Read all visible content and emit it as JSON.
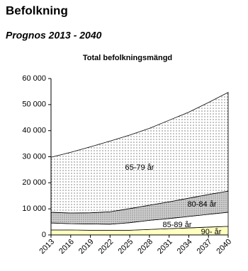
{
  "chart_data": {
    "type": "stacked-area",
    "title": "Befolkning",
    "subtitle": "Prognos 2013 - 2040",
    "chart_title": "Total befolkningsmängd",
    "x": [
      2013,
      2016,
      2019,
      2022,
      2025,
      2028,
      2031,
      2034,
      2037,
      2040
    ],
    "xlim": [
      2013,
      2040
    ],
    "xticks": [
      2013,
      2016,
      2019,
      2022,
      2025,
      2028,
      2031,
      2034,
      2037,
      2040
    ],
    "ylim": [
      0,
      60000
    ],
    "yticks": [
      {
        "value": 0,
        "label": "0"
      },
      {
        "value": 10000,
        "label": "10 000"
      },
      {
        "value": 20000,
        "label": "20 000"
      },
      {
        "value": 30000,
        "label": "30 000"
      },
      {
        "value": 40000,
        "label": "40 000"
      },
      {
        "value": 50000,
        "label": "50 000"
      },
      {
        "value": 60000,
        "label": "60 000"
      }
    ],
    "series": [
      {
        "name": "90- år",
        "color": "#ffffc0",
        "values": [
          1900,
          1900,
          1800,
          1800,
          1800,
          2100,
          2400,
          2700,
          3000,
          3300
        ]
      },
      {
        "name": "85-89 år",
        "color": "#ffffff",
        "values": [
          2700,
          2400,
          2400,
          2300,
          2900,
          3500,
          3900,
          4400,
          4900,
          5400
        ]
      },
      {
        "name": "80-84 år",
        "color": "#d0d0d0",
        "pattern": "dots",
        "values": [
          4100,
          4100,
          4300,
          4800,
          5400,
          5800,
          6400,
          7000,
          7600,
          8100
        ]
      },
      {
        "name": "65-79 år",
        "color": "#ffffff",
        "pattern": "dots",
        "values": [
          21100,
          23300,
          25300,
          27100,
          28200,
          29500,
          31300,
          33000,
          35300,
          37900
        ]
      }
    ]
  }
}
